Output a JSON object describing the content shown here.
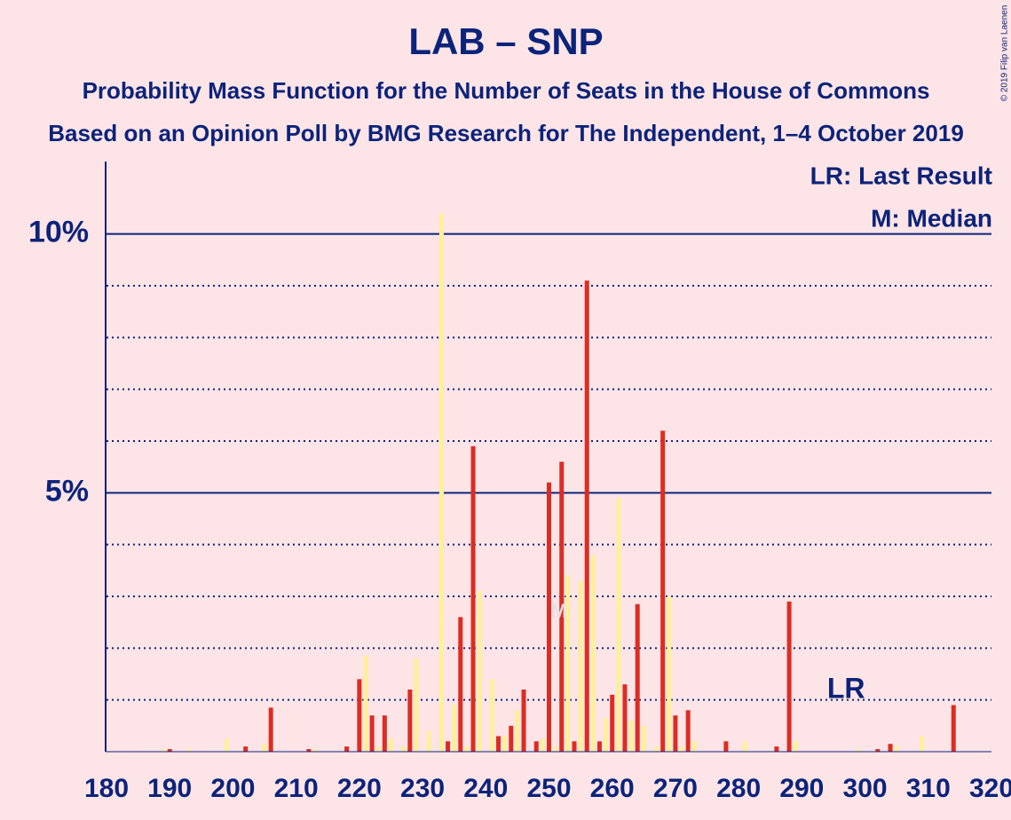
{
  "chart_data": {
    "type": "bar",
    "title": "LAB – SNP",
    "subtitle": "Probability Mass Function for the Number of Seats in the House of Commons",
    "subtitle2": "Based on an Opinion Poll by BMG Research for The Independent, 1–4 October 2019",
    "credit": "© 2019 Filip van Laenen",
    "legend": [
      "LR: Last Result",
      "M: Median"
    ],
    "annotations": [
      {
        "text": "LR",
        "x": 297
      },
      {
        "text": "M",
        "x": 252
      }
    ],
    "xlim": [
      180,
      320
    ],
    "xticks": [
      180,
      190,
      200,
      210,
      220,
      230,
      240,
      250,
      260,
      270,
      280,
      290,
      300,
      310,
      320
    ],
    "ylim": [
      0,
      11.4
    ],
    "yticks": [
      {
        "value": 5,
        "label": "5%"
      },
      {
        "value": 10,
        "label": "10%"
      }
    ],
    "minor_grid": [
      1,
      2,
      3,
      4,
      6,
      7,
      8,
      9
    ],
    "series": [
      {
        "color": "#dd2c23",
        "x": [
          180,
          182,
          184,
          186,
          188,
          190,
          192,
          194,
          196,
          198,
          200,
          202,
          204,
          206,
          208,
          210,
          212,
          214,
          216,
          218,
          220,
          222,
          224,
          226,
          228,
          230,
          232,
          234,
          236,
          238,
          240,
          242,
          244,
          246,
          248,
          250,
          252,
          254,
          256,
          258,
          260,
          262,
          264,
          266,
          268,
          270,
          272,
          274,
          276,
          278,
          280,
          282,
          284,
          286,
          288,
          290,
          292,
          294,
          296,
          298,
          300,
          302,
          304,
          306,
          308,
          310,
          312,
          314,
          316,
          318,
          320
        ],
        "values": [
          0,
          0,
          0,
          0,
          0,
          0.05,
          0,
          0,
          0,
          0,
          0,
          0.1,
          0,
          0.85,
          0,
          0,
          0.05,
          0,
          0,
          0.1,
          1.4,
          0.7,
          0.7,
          0,
          1.2,
          0,
          0,
          0.2,
          2.6,
          5.9,
          0,
          0.3,
          0.5,
          1.2,
          0.2,
          5.2,
          5.6,
          0.2,
          9.1,
          0.2,
          1.1,
          1.3,
          2.85,
          0,
          6.2,
          0.7,
          0.8,
          0,
          0,
          0.2,
          0,
          0,
          0,
          0.1,
          2.9,
          0,
          0,
          0,
          0,
          0,
          0,
          0.05,
          0.15,
          0,
          0,
          0,
          0,
          0.9,
          0,
          0,
          0
        ]
      },
      {
        "color": "#fff09a",
        "x": [
          181,
          183,
          185,
          187,
          189,
          191,
          193,
          195,
          197,
          199,
          201,
          203,
          205,
          207,
          209,
          211,
          213,
          215,
          217,
          219,
          221,
          223,
          225,
          227,
          229,
          231,
          233,
          235,
          237,
          239,
          241,
          243,
          245,
          247,
          249,
          251,
          253,
          255,
          257,
          259,
          261,
          263,
          265,
          267,
          269,
          271,
          273,
          275,
          277,
          279,
          281,
          283,
          285,
          287,
          289,
          291,
          293,
          295,
          297,
          299,
          301,
          303,
          305,
          307,
          309,
          311,
          313,
          315,
          317,
          319
        ],
        "values": [
          0,
          0,
          0,
          0,
          0.05,
          0,
          0.05,
          0,
          0,
          0.25,
          0,
          0,
          0.15,
          0,
          0,
          0,
          0.05,
          0,
          0,
          0,
          1.85,
          0.1,
          0.25,
          0.1,
          1.8,
          0.4,
          10.4,
          0.9,
          0.1,
          3.1,
          1.4,
          0.3,
          0.8,
          0,
          0.25,
          0.1,
          3.4,
          3.3,
          3.8,
          0.65,
          4.9,
          0.6,
          0.5,
          0.1,
          3.0,
          0.1,
          0.2,
          0,
          0,
          0,
          0.2,
          0,
          0,
          0,
          0.2,
          0,
          0,
          0,
          0,
          0.05,
          0,
          0,
          0.1,
          0,
          0.3,
          0,
          0,
          0,
          0,
          0
        ]
      }
    ]
  }
}
